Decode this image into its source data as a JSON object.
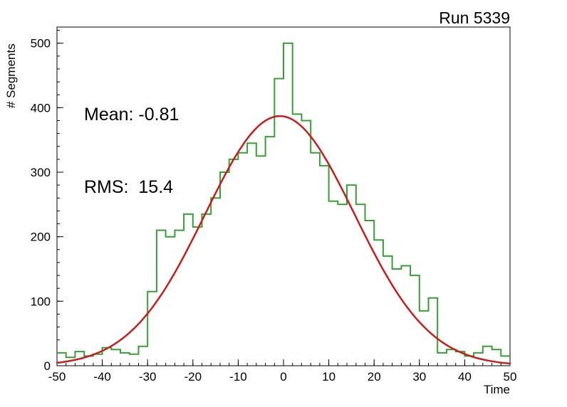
{
  "chart_data": {
    "type": "bar",
    "subtype": "histogram-with-gaussian-fit",
    "title": "Run 5339",
    "xlabel": "Time",
    "ylabel": "# Segments",
    "xlim": [
      -50,
      50
    ],
    "ylim": [
      0,
      525
    ],
    "bin_start": -50,
    "bin_width": 2,
    "values": [
      20,
      13,
      22,
      15,
      18,
      28,
      25,
      20,
      18,
      30,
      115,
      210,
      200,
      210,
      235,
      215,
      235,
      260,
      300,
      320,
      330,
      345,
      325,
      355,
      445,
      500,
      390,
      380,
      330,
      310,
      255,
      250,
      280,
      250,
      225,
      195,
      170,
      150,
      155,
      140,
      85,
      105,
      20,
      25,
      22,
      15,
      20,
      30,
      25,
      15
    ],
    "xticks": {
      "major": [
        -50,
        -40,
        -30,
        -20,
        -10,
        0,
        10,
        20,
        30,
        40,
        50
      ],
      "labels": [
        "-50",
        "-40",
        "-30",
        "-20",
        "-10",
        "0",
        "10",
        "20",
        "30",
        "40",
        "50"
      ],
      "minor_step": 2
    },
    "yticks": {
      "major": [
        0,
        100,
        200,
        300,
        400,
        500
      ],
      "labels": [
        "0",
        "100",
        "200",
        "300",
        "400",
        "500"
      ],
      "minor_step": 20
    },
    "hist_color": "#3a9d3a",
    "frame_color": "#000000",
    "background_color": "#ffffff",
    "fit": {
      "type": "gaussian",
      "amplitude": 387,
      "mean": -0.81,
      "sigma": 16.5,
      "color": "#c02020"
    },
    "stats": {
      "mean_label": "Mean: -0.81",
      "rms_label": "RMS:  15.4"
    },
    "legend": "none",
    "grid": false
  }
}
